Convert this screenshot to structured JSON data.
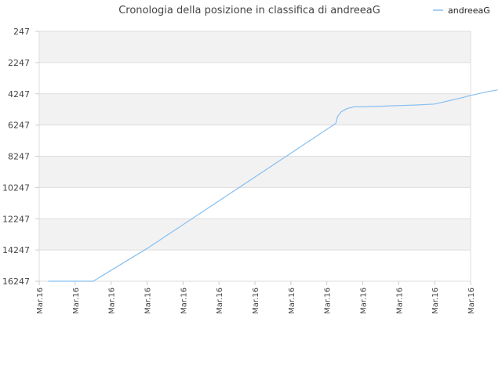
{
  "chart_data": {
    "type": "line",
    "title": "Cronologia della posizione in classifica di andreeaG",
    "xlabel": "",
    "ylabel": "",
    "y_reversed": true,
    "ylim": [
      247,
      16247
    ],
    "yticks": [
      "247",
      "2247",
      "4247",
      "6247",
      "8247",
      "10247",
      "12247",
      "14247",
      "16247"
    ],
    "xticks": [
      "Mar.16",
      "Mar.16",
      "Mar.16",
      "Mar.16",
      "Mar.16",
      "Mar.16",
      "Mar.16",
      "Mar.16",
      "Mar.16",
      "Mar.16",
      "Mar.16",
      "Mar.16",
      "Mar.16"
    ],
    "legend": {
      "position": "top-right"
    },
    "grid": true,
    "colors": {
      "line": "#88bff0",
      "band": "#f2f2f2",
      "grid": "#dddddd"
    },
    "series": [
      {
        "name": "andreeaG",
        "x": [
          0.25,
          0.5,
          1.0,
          1.5,
          3.0,
          5.0,
          7.0,
          8.25,
          8.3,
          8.4,
          8.55,
          8.75,
          9.0,
          9.5,
          10.5,
          11.0,
          11.75,
          12.0,
          12.5,
          12.75
        ],
        "y": [
          16247,
          16247,
          16247,
          16247,
          14150,
          11100,
          8050,
          6140,
          5700,
          5400,
          5200,
          5080,
          5080,
          5040,
          4960,
          4900,
          4500,
          4350,
          4100,
          4000
        ]
      }
    ]
  }
}
